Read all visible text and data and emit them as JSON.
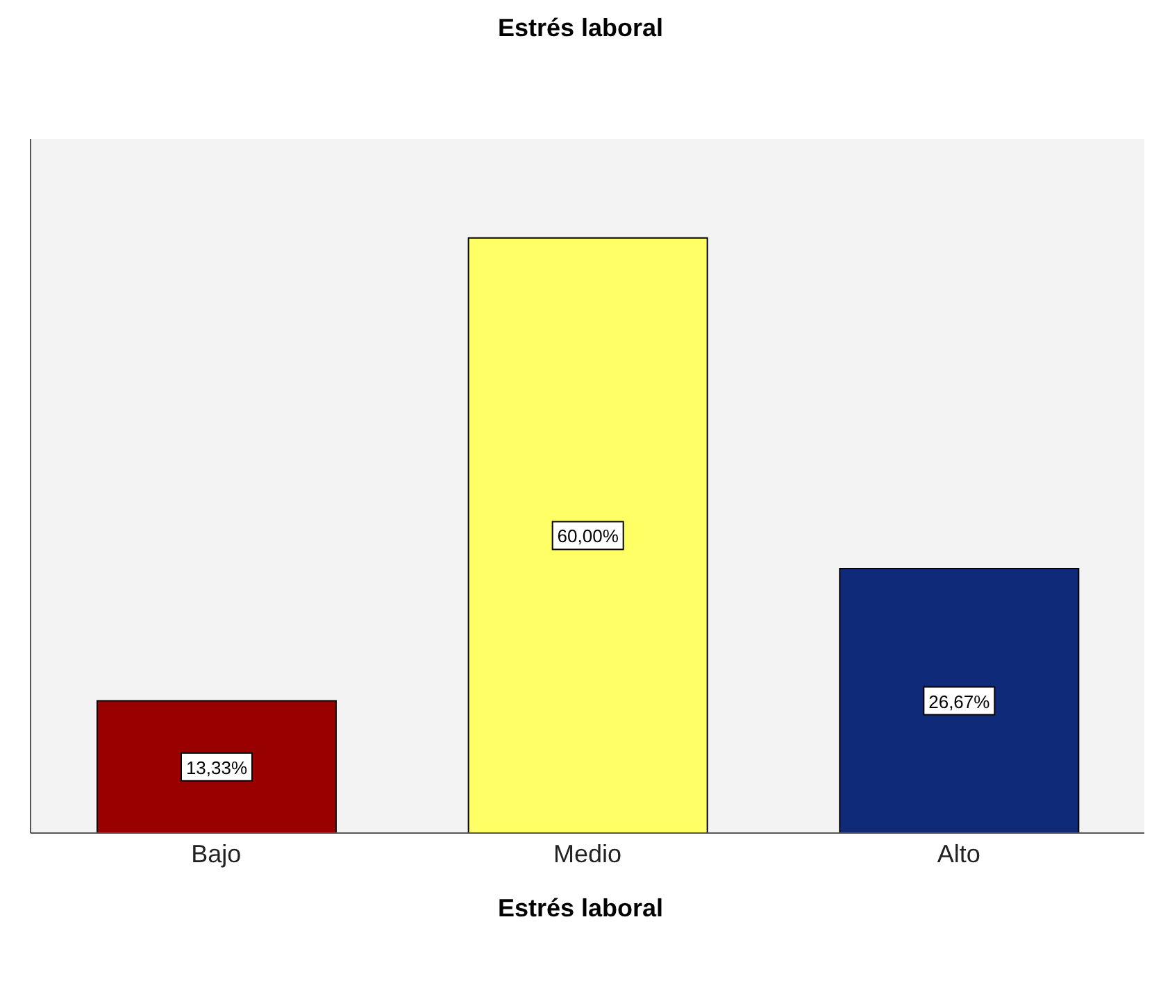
{
  "chart_data": {
    "type": "bar",
    "title": "Estrés laboral",
    "xlabel": "Estrés laboral",
    "categories": [
      "Bajo",
      "Medio",
      "Alto"
    ],
    "values": [
      13.33,
      60.0,
      26.67
    ],
    "colors": [
      "#990000",
      "#ffff66",
      "#0f2a78"
    ],
    "value_labels": [
      "13,33%",
      "60,00%",
      "26,67%"
    ],
    "tick_labels": "x",
    "legend": false
  }
}
